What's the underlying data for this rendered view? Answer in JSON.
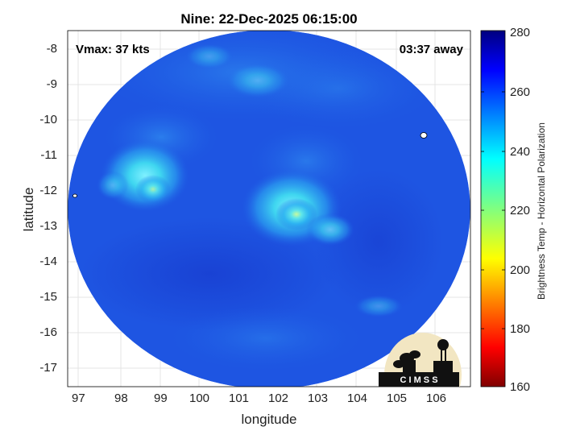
{
  "title": "Nine: 22-Dec-2025 06:15:00",
  "vmax_label": "Vmax: 37 kts",
  "time_away": "03:37 away",
  "x_axis": {
    "label": "longitude",
    "ticks": [
      "97",
      "98",
      "99",
      "100",
      "101",
      "102",
      "103",
      "104",
      "105",
      "106"
    ]
  },
  "y_axis": {
    "label": "latitude",
    "ticks": [
      "-8",
      "-9",
      "-10",
      "-11",
      "-12",
      "-13",
      "-14",
      "-15",
      "-16",
      "-17"
    ]
  },
  "colorbar": {
    "label": "Brightness Temp - Horizontal Polarization",
    "ticks": [
      "280",
      "260",
      "240",
      "220",
      "200",
      "180",
      "160"
    ],
    "range": [
      160,
      280
    ],
    "colormap": "jet"
  },
  "logo": {
    "text": "C I M S S"
  },
  "colors": {
    "background_ocean": "#1d4fe0",
    "convection": "#3fd0ef",
    "frame": "#000000"
  }
}
